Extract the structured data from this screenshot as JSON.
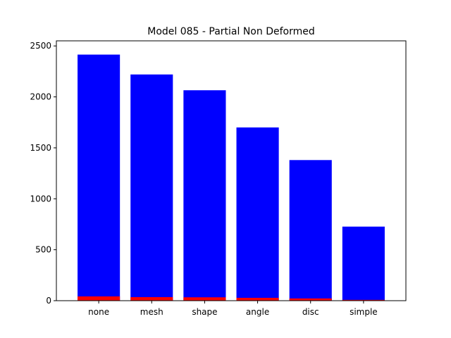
{
  "chart_data": {
    "type": "bar",
    "title": "Model 085 - Partial Non Deformed",
    "xlabel": "",
    "ylabel": "",
    "categories": [
      "none",
      "mesh",
      "shape",
      "angle",
      "disc",
      "simple"
    ],
    "series": [
      {
        "values": [
          2415,
          2220,
          2065,
          1700,
          1380,
          727
        ]
      },
      {
        "values": [
          42,
          35,
          33,
          28,
          22,
          8
        ]
      }
    ],
    "ylim": [
      0,
      2550
    ],
    "yticks": [
      0,
      500,
      1000,
      1500,
      2000,
      2500
    ],
    "grid": false,
    "colors": {
      "series0": "#0000ff",
      "series1": "#ff0000"
    }
  }
}
